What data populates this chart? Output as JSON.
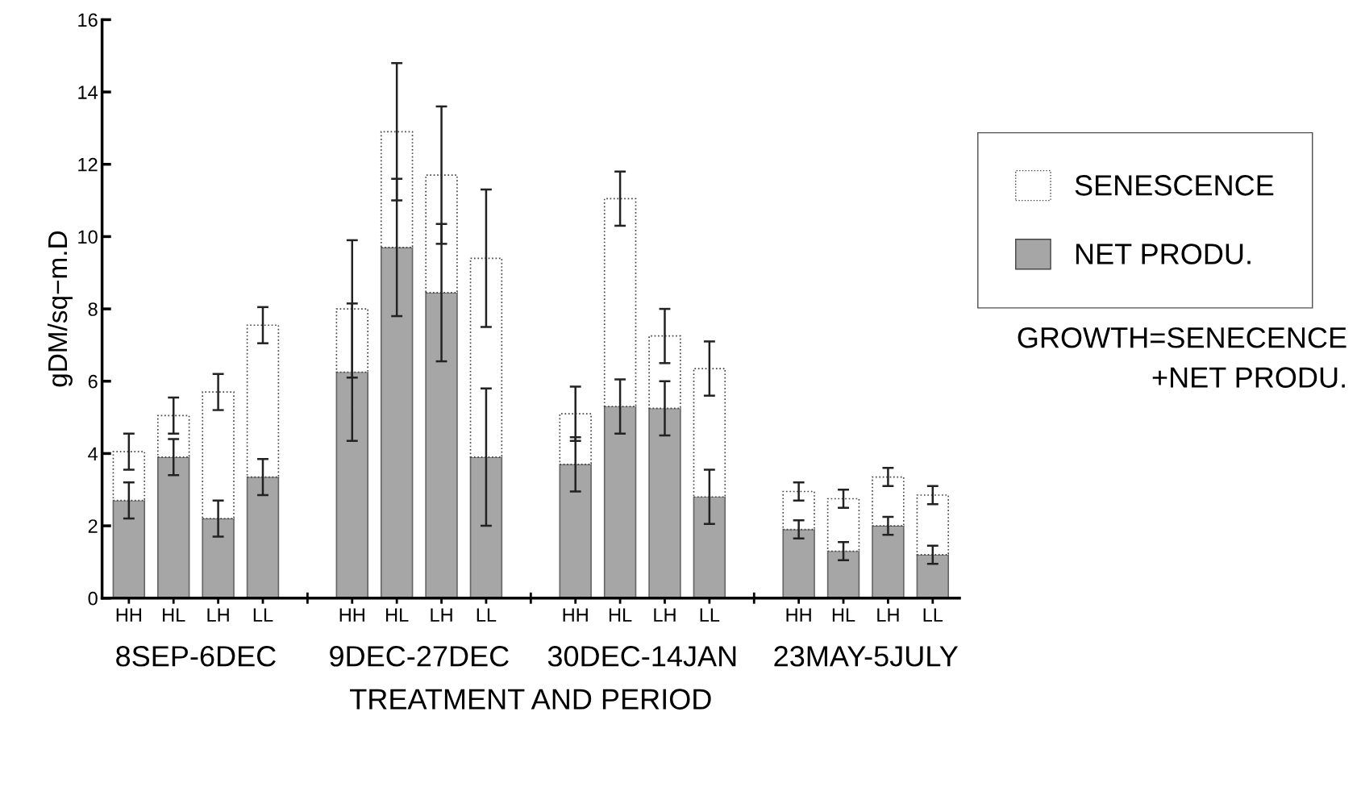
{
  "chart_data": {
    "type": "bar",
    "stacked": true,
    "xlabel": "TREATMENT AND PERIOD",
    "ylabel": "gDM/sq−m.D",
    "categories": [
      "HH",
      "HL",
      "LH",
      "LL",
      null,
      "HH",
      "HL",
      "LH",
      "LL",
      null,
      "HH",
      "HL",
      "LH",
      "LL",
      null,
      "HH",
      "HL",
      "LH",
      "LL"
    ],
    "series": [
      {
        "name": "NET PRODU.",
        "color": "#a6a6a6",
        "values": [
          2.7,
          3.9,
          2.2,
          3.35,
          null,
          6.25,
          9.7,
          8.45,
          3.9,
          null,
          3.7,
          5.3,
          5.25,
          2.8,
          null,
          1.9,
          1.3,
          2.0,
          1.2
        ],
        "errors": [
          0.5,
          0.5,
          0.5,
          0.5,
          null,
          1.9,
          1.9,
          1.9,
          1.9,
          null,
          0.75,
          0.75,
          0.75,
          0.75,
          null,
          0.25,
          0.25,
          0.25,
          0.25
        ]
      },
      {
        "name": "SENESCENCE",
        "color": "#ffffff",
        "values": [
          1.35,
          1.15,
          3.5,
          4.2,
          null,
          1.75,
          3.2,
          3.25,
          5.5,
          null,
          1.4,
          5.75,
          2.0,
          3.55,
          null,
          1.05,
          1.45,
          1.35,
          1.65
        ],
        "errors": [
          0.5,
          0.5,
          0.5,
          0.5,
          null,
          1.9,
          1.9,
          1.9,
          1.9,
          null,
          0.75,
          0.75,
          0.75,
          0.75,
          null,
          0.25,
          0.25,
          0.25,
          0.25
        ]
      }
    ],
    "ylim": [
      0,
      16
    ],
    "yticks": [
      0,
      2,
      4,
      6,
      8,
      10,
      12,
      14,
      16
    ],
    "grid": false,
    "legend": "right",
    "annotations": [
      "8SEP-6DEC",
      "9DEC-27DEC",
      "30DEC-14JAN",
      "23MAY-5JULY",
      "GROWTH=SENECENCE\n+NET PRODU."
    ]
  }
}
